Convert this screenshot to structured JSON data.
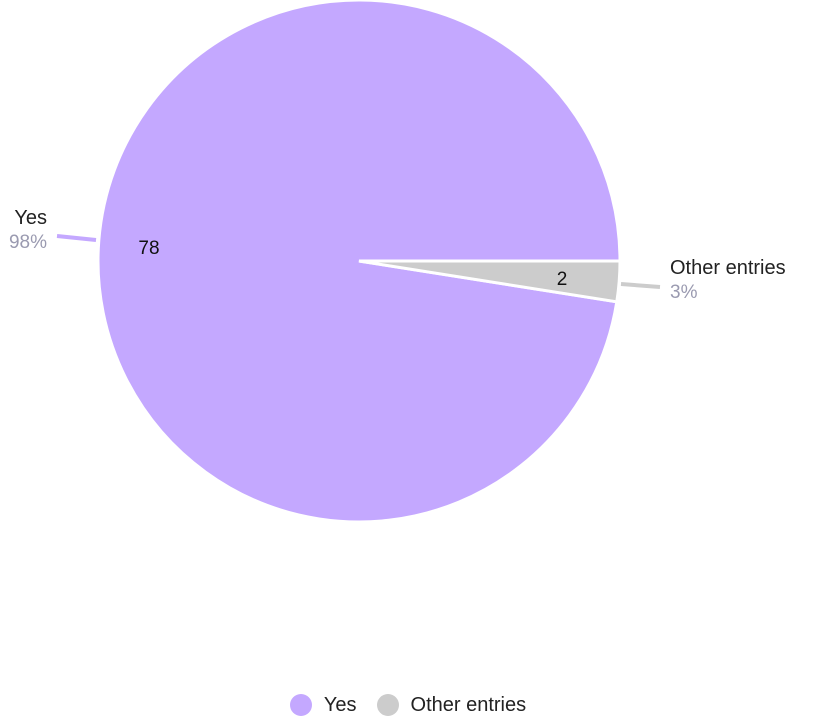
{
  "chart_data": {
    "type": "pie",
    "title": "",
    "categories": [
      "Yes",
      "Other entries"
    ],
    "values": [
      78,
      2
    ],
    "percent_labels": [
      "98%",
      "3%"
    ],
    "colors": [
      "#c4a8ff",
      "#cccccc"
    ],
    "legend_position": "bottom-center",
    "data_labels_inside": true,
    "outer_labels": true
  },
  "legend": {
    "items": [
      {
        "label": "Yes",
        "color": "#c4a8ff"
      },
      {
        "label": "Other entries",
        "color": "#cccccc"
      }
    ]
  }
}
